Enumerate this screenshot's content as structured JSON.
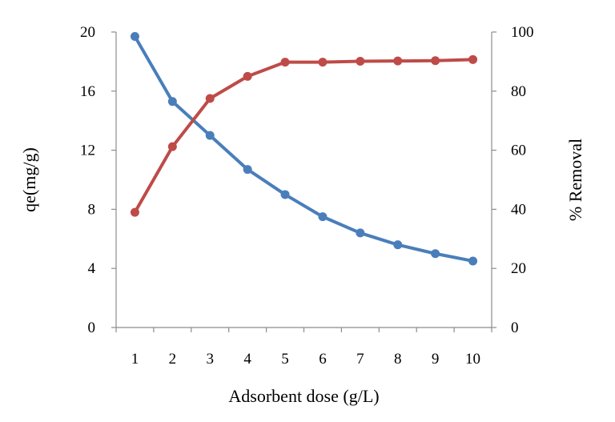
{
  "chart_data": {
    "type": "line",
    "xlabel": "Adsorbent dose (g/L)",
    "ylabel_left": "qe(mg/g)",
    "ylabel_right": "% Removal",
    "x": [
      1,
      2,
      3,
      4,
      5,
      6,
      7,
      8,
      9,
      10
    ],
    "x_tick_labels": [
      "1",
      "2",
      "3",
      "4",
      "5",
      "6",
      "7",
      "8",
      "9",
      "10"
    ],
    "ylim_left": [
      0,
      20
    ],
    "yticks_left": [
      "0",
      "4",
      "8",
      "12",
      "16",
      "20"
    ],
    "ylim_right": [
      0,
      100
    ],
    "yticks_right": [
      "0",
      "20",
      "40",
      "60",
      "80",
      "100"
    ],
    "grid": false,
    "legend": "none",
    "series": [
      {
        "axis": "left",
        "color": "#4a7ebb",
        "marker": "circle",
        "values": [
          19.7,
          15.3,
          13.0,
          10.7,
          9.0,
          7.5,
          6.4,
          5.6,
          5.0,
          4.5
        ]
      },
      {
        "axis": "right",
        "color": "#be4b48",
        "marker": "circle",
        "values": [
          39,
          61.2,
          77.5,
          85,
          89.8,
          89.8,
          90.1,
          90.2,
          90.3,
          90.7
        ]
      }
    ]
  }
}
